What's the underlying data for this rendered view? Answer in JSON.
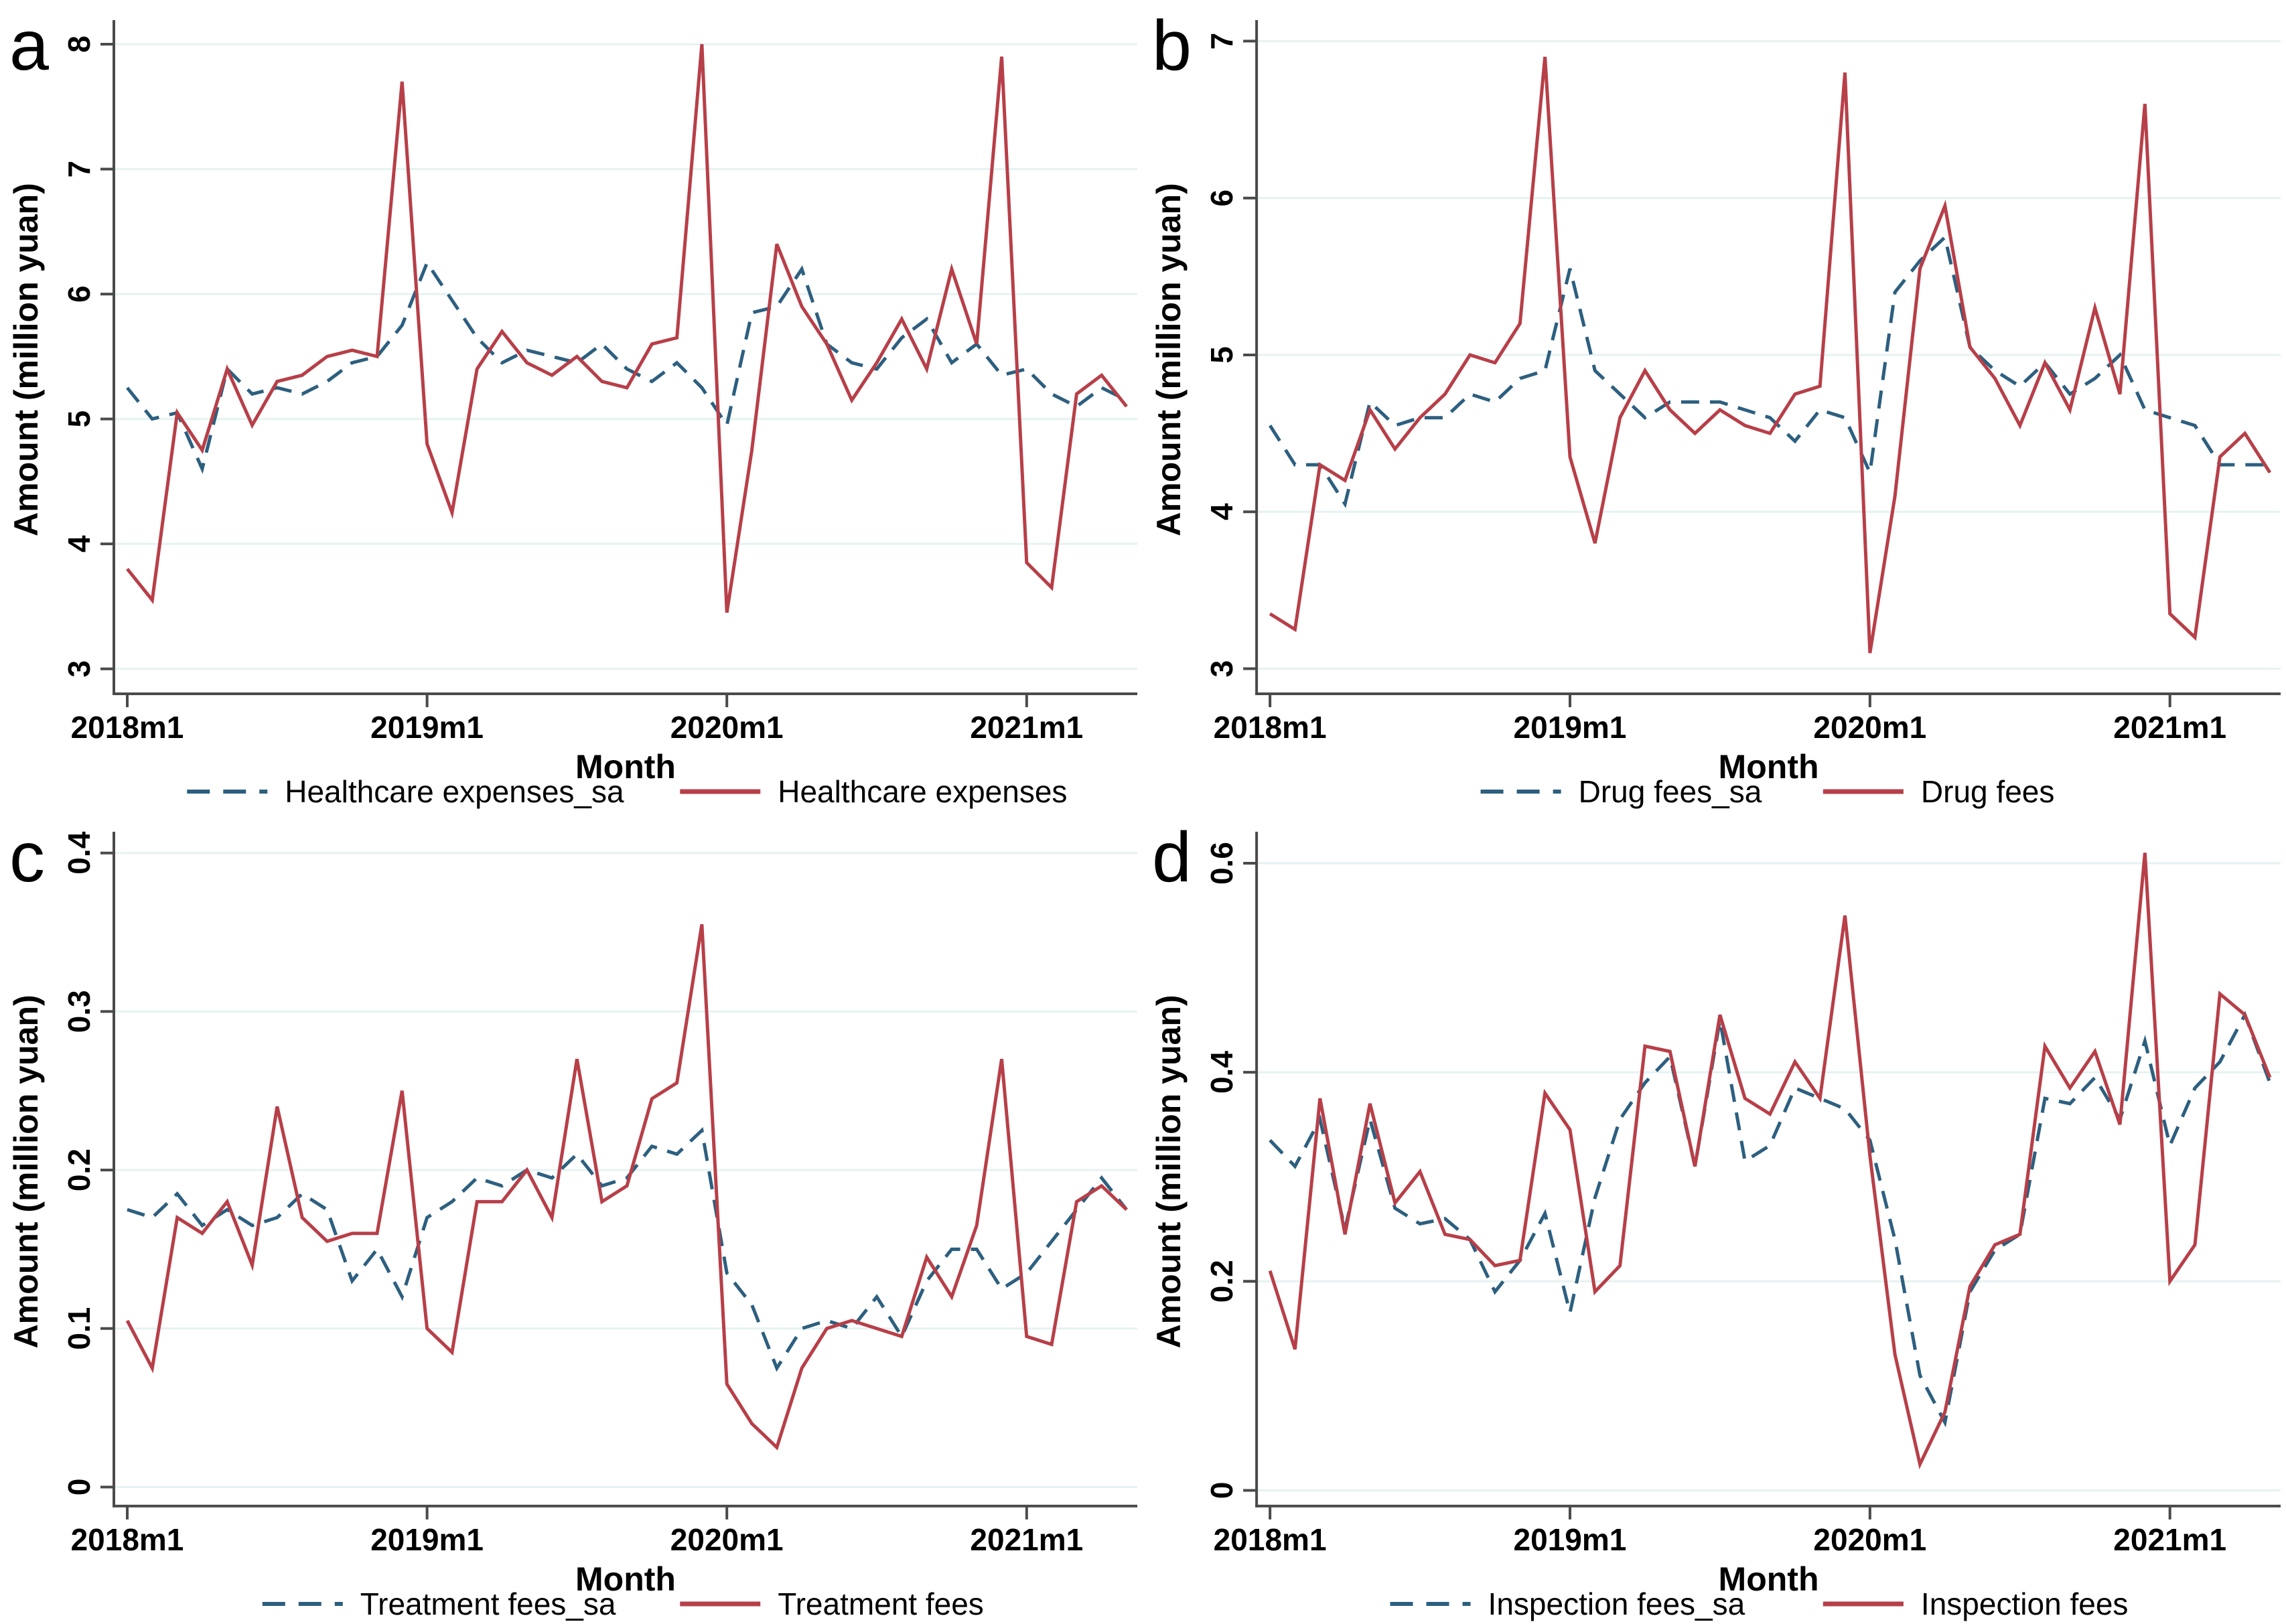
{
  "figure": {
    "xlabel": "Month",
    "ylabel": "Amount (million yuan)",
    "panel_letters": [
      "a",
      "b",
      "c",
      "d"
    ],
    "colors": {
      "sa_line": "#2d5f7f",
      "raw_line": "#b73f48",
      "grid": "#e6f2f2",
      "axis": "#4a4a4a",
      "text": "#000000",
      "background": "#ffffff"
    }
  },
  "chart_data": [
    {
      "panel_label": "a",
      "type": "line",
      "title": "",
      "xlabel": "Month",
      "ylabel": "Amount (million yuan)",
      "x_start": "2018m1",
      "x_end": "2021m5",
      "frequency": "monthly",
      "n_points": 41,
      "x_tick_labels": [
        "2018m1",
        "2019m1",
        "2020m1",
        "2021m1"
      ],
      "x_tick_indices": [
        0,
        12,
        24,
        36
      ],
      "y_ticks": [
        3,
        4,
        5,
        6,
        7,
        8
      ],
      "y_tick_labels": [
        "3",
        "4",
        "5",
        "6",
        "7",
        "8"
      ],
      "ylim": [
        2.8,
        8.15
      ],
      "grid": "horizontal",
      "legend_position": "bottom-center",
      "series": [
        {
          "name": "Healthcare expenses_sa",
          "style": "dashed",
          "color": "#2d5f7f",
          "values": [
            5.25,
            5.0,
            5.05,
            4.6,
            5.4,
            5.2,
            5.25,
            5.2,
            5.3,
            5.45,
            5.5,
            5.75,
            6.25,
            5.95,
            5.65,
            5.45,
            5.55,
            5.5,
            5.45,
            5.6,
            5.4,
            5.3,
            5.45,
            5.25,
            4.95,
            5.85,
            5.9,
            6.2,
            5.6,
            5.45,
            5.4,
            5.65,
            5.8,
            5.45,
            5.6,
            5.35,
            5.4,
            5.2,
            5.1,
            5.25,
            5.15
          ]
        },
        {
          "name": "Healthcare expenses",
          "style": "solid",
          "color": "#b73f48",
          "values": [
            3.8,
            3.55,
            5.05,
            4.75,
            5.4,
            4.95,
            5.3,
            5.35,
            5.5,
            5.55,
            5.5,
            7.7,
            4.8,
            4.25,
            5.4,
            5.7,
            5.45,
            5.35,
            5.5,
            5.3,
            5.25,
            5.6,
            5.65,
            8.0,
            3.45,
            4.75,
            6.4,
            5.9,
            5.6,
            5.15,
            5.45,
            5.8,
            5.4,
            6.2,
            5.6,
            7.9,
            3.85,
            3.65,
            5.2,
            5.35,
            5.1
          ]
        }
      ]
    },
    {
      "panel_label": "b",
      "type": "line",
      "title": "",
      "xlabel": "Month",
      "ylabel": "Amount (million yuan)",
      "x_start": "2018m1",
      "x_end": "2021m5",
      "frequency": "monthly",
      "n_points": 41,
      "x_tick_labels": [
        "2018m1",
        "2019m1",
        "2020m1",
        "2021m1"
      ],
      "x_tick_indices": [
        0,
        12,
        24,
        36
      ],
      "y_ticks": [
        3,
        4,
        5,
        6,
        7
      ],
      "y_tick_labels": [
        "3",
        "4",
        "5",
        "6",
        "7"
      ],
      "ylim": [
        2.84,
        7.1
      ],
      "grid": "horizontal",
      "legend_position": "bottom-center",
      "series": [
        {
          "name": "Drug fees_sa",
          "style": "dashed",
          "color": "#2d5f7f",
          "values": [
            4.55,
            4.3,
            4.3,
            4.05,
            4.7,
            4.55,
            4.6,
            4.6,
            4.75,
            4.7,
            4.85,
            4.9,
            5.55,
            4.9,
            4.75,
            4.6,
            4.7,
            4.7,
            4.7,
            4.65,
            4.6,
            4.45,
            4.65,
            4.6,
            4.25,
            5.4,
            5.6,
            5.75,
            5.05,
            4.9,
            4.8,
            4.95,
            4.75,
            4.85,
            5.0,
            4.65,
            4.6,
            4.55,
            4.3,
            4.3,
            4.3
          ]
        },
        {
          "name": "Drug fees",
          "style": "solid",
          "color": "#b73f48",
          "values": [
            3.35,
            3.25,
            4.3,
            4.2,
            4.65,
            4.4,
            4.6,
            4.75,
            5.0,
            4.95,
            5.2,
            6.9,
            4.35,
            3.8,
            4.6,
            4.9,
            4.65,
            4.5,
            4.65,
            4.55,
            4.5,
            4.75,
            4.8,
            6.8,
            3.1,
            4.1,
            5.55,
            5.95,
            5.05,
            4.85,
            4.55,
            4.95,
            4.65,
            5.3,
            4.75,
            6.6,
            3.35,
            3.2,
            4.35,
            4.5,
            4.25
          ]
        }
      ]
    },
    {
      "panel_label": "c",
      "type": "line",
      "title": "",
      "xlabel": "Month",
      "ylabel": "Amount (million yuan)",
      "x_start": "2018m1",
      "x_end": "2021m5",
      "frequency": "monthly",
      "n_points": 41,
      "x_tick_labels": [
        "2018m1",
        "2019m1",
        "2020m1",
        "2021m1"
      ],
      "x_tick_indices": [
        0,
        12,
        24,
        36
      ],
      "y_ticks": [
        0,
        0.1,
        0.2,
        0.3,
        0.4
      ],
      "y_tick_labels": [
        "0",
        "0.1",
        "0.2",
        "0.3",
        "0.4"
      ],
      "ylim": [
        -0.012,
        0.41
      ],
      "grid": "horizontal",
      "legend_position": "bottom-center",
      "series": [
        {
          "name": "Treatment fees_sa",
          "style": "dashed",
          "color": "#2d5f7f",
          "values": [
            0.175,
            0.17,
            0.185,
            0.165,
            0.175,
            0.165,
            0.17,
            0.185,
            0.175,
            0.13,
            0.15,
            0.12,
            0.17,
            0.18,
            0.195,
            0.19,
            0.2,
            0.195,
            0.21,
            0.19,
            0.195,
            0.215,
            0.21,
            0.225,
            0.135,
            0.115,
            0.075,
            0.1,
            0.105,
            0.1,
            0.12,
            0.095,
            0.13,
            0.15,
            0.15,
            0.125,
            0.135,
            0.155,
            0.175,
            0.195,
            0.175
          ]
        },
        {
          "name": "Treatment fees",
          "style": "solid",
          "color": "#b73f48",
          "values": [
            0.105,
            0.075,
            0.17,
            0.16,
            0.18,
            0.14,
            0.24,
            0.17,
            0.155,
            0.16,
            0.16,
            0.25,
            0.1,
            0.085,
            0.18,
            0.18,
            0.2,
            0.17,
            0.27,
            0.18,
            0.19,
            0.245,
            0.255,
            0.355,
            0.065,
            0.04,
            0.025,
            0.075,
            0.1,
            0.105,
            0.1,
            0.095,
            0.145,
            0.12,
            0.165,
            0.27,
            0.095,
            0.09,
            0.18,
            0.19,
            0.175
          ]
        }
      ]
    },
    {
      "panel_label": "d",
      "type": "line",
      "title": "",
      "xlabel": "Month",
      "ylabel": "Amount (million yuan)",
      "x_start": "2018m1",
      "x_end": "2021m5",
      "frequency": "monthly",
      "n_points": 41,
      "x_tick_labels": [
        "2018m1",
        "2019m1",
        "2020m1",
        "2021m1"
      ],
      "x_tick_indices": [
        0,
        12,
        24,
        36
      ],
      "y_ticks": [
        0,
        0.2,
        0.4,
        0.6
      ],
      "y_tick_labels": [
        "0",
        "0.2",
        "0.4",
        "0.6"
      ],
      "ylim": [
        -0.015,
        0.625
      ],
      "grid": "horizontal",
      "legend_position": "bottom-center",
      "series": [
        {
          "name": "Inspection fees_sa",
          "style": "dashed",
          "color": "#2d5f7f",
          "values": [
            0.335,
            0.31,
            0.355,
            0.25,
            0.355,
            0.27,
            0.255,
            0.26,
            0.24,
            0.19,
            0.22,
            0.265,
            0.17,
            0.28,
            0.355,
            0.39,
            0.415,
            0.31,
            0.45,
            0.315,
            0.33,
            0.385,
            0.375,
            0.365,
            0.335,
            0.24,
            0.11,
            0.065,
            0.19,
            0.23,
            0.245,
            0.375,
            0.37,
            0.395,
            0.355,
            0.43,
            0.33,
            0.385,
            0.41,
            0.455,
            0.39
          ]
        },
        {
          "name": "Inspection fees",
          "style": "solid",
          "color": "#b73f48",
          "values": [
            0.21,
            0.135,
            0.375,
            0.245,
            0.37,
            0.275,
            0.305,
            0.245,
            0.24,
            0.215,
            0.22,
            0.38,
            0.345,
            0.19,
            0.215,
            0.425,
            0.42,
            0.31,
            0.455,
            0.375,
            0.36,
            0.41,
            0.375,
            0.55,
            0.32,
            0.13,
            0.025,
            0.075,
            0.195,
            0.235,
            0.245,
            0.425,
            0.385,
            0.42,
            0.35,
            0.61,
            0.2,
            0.235,
            0.475,
            0.455,
            0.395
          ]
        }
      ]
    }
  ]
}
